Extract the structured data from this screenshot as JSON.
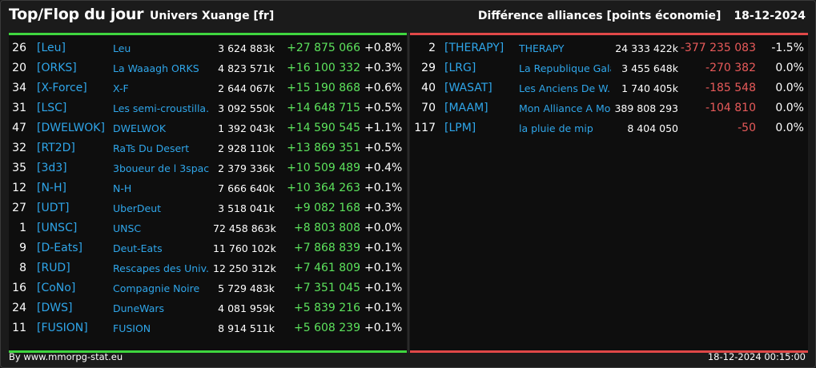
{
  "header": {
    "title": "Top/Flop du jour",
    "subtitle": "Univers Xuange [fr]",
    "right_label": "Différence alliances [points économie]",
    "date": "18-12-2024"
  },
  "colors": {
    "gain": "#5de35d",
    "loss": "#e85a5a",
    "tag": "#2fa6ea"
  },
  "top": [
    {
      "rank": "26",
      "tag": "[Leu]",
      "name": "Leu",
      "points": "3 624 883k",
      "diff": "+27 875 066",
      "pct": "+0.8%"
    },
    {
      "rank": "20",
      "tag": "[ORKS]",
      "name": "La Waaagh ORKS",
      "points": "4 823 571k",
      "diff": "+16 100 332",
      "pct": "+0.3%"
    },
    {
      "rank": "34",
      "tag": "[X-Force]",
      "name": "X-F",
      "points": "2 644 067k",
      "diff": "+15 190 868",
      "pct": "+0.6%"
    },
    {
      "rank": "31",
      "tag": "[LSC]",
      "name": "Les semi-croustilla...",
      "points": "3 092 550k",
      "diff": "+14 648 715",
      "pct": "+0.5%"
    },
    {
      "rank": "47",
      "tag": "[DWELWOK]",
      "name": "DWELWOK",
      "points": "1 392 043k",
      "diff": "+14 590 545",
      "pct": "+1.1%"
    },
    {
      "rank": "32",
      "tag": "[RT2D]",
      "name": "RaTs Du Desert",
      "points": "2 928 110k",
      "diff": "+13 869 351",
      "pct": "+0.5%"
    },
    {
      "rank": "35",
      "tag": "[3d3]",
      "name": "3boueur de l 3space",
      "points": "2 379 336k",
      "diff": "+10 509 489",
      "pct": "+0.4%"
    },
    {
      "rank": "12",
      "tag": "[N-H]",
      "name": "N-H",
      "points": "7 666 640k",
      "diff": "+10 364 263",
      "pct": "+0.1%"
    },
    {
      "rank": "27",
      "tag": "[UDT]",
      "name": "UberDeut",
      "points": "3 518 041k",
      "diff": "+9 082 168",
      "pct": "+0.3%"
    },
    {
      "rank": "1",
      "tag": "[UNSC]",
      "name": "UNSC",
      "points": "72 458 863k",
      "diff": "+8 803 808",
      "pct": "+0.0%"
    },
    {
      "rank": "9",
      "tag": "[D-Eats]",
      "name": "Deut-Eats",
      "points": "11 760 102k",
      "diff": "+7 868 839",
      "pct": "+0.1%"
    },
    {
      "rank": "8",
      "tag": "[RUD]",
      "name": "Rescapes des Univ...",
      "points": "12 250 312k",
      "diff": "+7 461 809",
      "pct": "+0.1%"
    },
    {
      "rank": "16",
      "tag": "[CoNo]",
      "name": "Compagnie Noire",
      "points": "5 729 483k",
      "diff": "+7 351 045",
      "pct": "+0.1%"
    },
    {
      "rank": "24",
      "tag": "[DWS]",
      "name": "DuneWars",
      "points": "4 081 959k",
      "diff": "+5 839 216",
      "pct": "+0.1%"
    },
    {
      "rank": "11",
      "tag": "[FUSION]",
      "name": "FUSION",
      "points": "8 914 511k",
      "diff": "+5 608 239",
      "pct": "+0.1%"
    }
  ],
  "flop": [
    {
      "rank": "2",
      "tag": "[THERAPY]",
      "name": "THERAPY",
      "points": "24 333 422k",
      "diff": "-377 235 083",
      "pct": "-1.5%"
    },
    {
      "rank": "29",
      "tag": "[LRG]",
      "name": "La Republique Gala...",
      "points": "3 455 648k",
      "diff": "-270 382",
      "pct": "0.0%"
    },
    {
      "rank": "40",
      "tag": "[WASAT]",
      "name": "Les Anciens De W...",
      "points": "1 740 405k",
      "diff": "-185 548",
      "pct": "0.0%"
    },
    {
      "rank": "70",
      "tag": "[MAAM]",
      "name": "Mon Alliance A Moi",
      "points": "389 808 293",
      "diff": "-104 810",
      "pct": "0.0%"
    },
    {
      "rank": "117",
      "tag": "[LPM]",
      "name": "la pluie de mip",
      "points": "8 404 050",
      "diff": "-50",
      "pct": "0.0%"
    }
  ],
  "footer": {
    "source": "By www.mmorpg-stat.eu",
    "timestamp": "18-12-2024 00:15:00"
  }
}
